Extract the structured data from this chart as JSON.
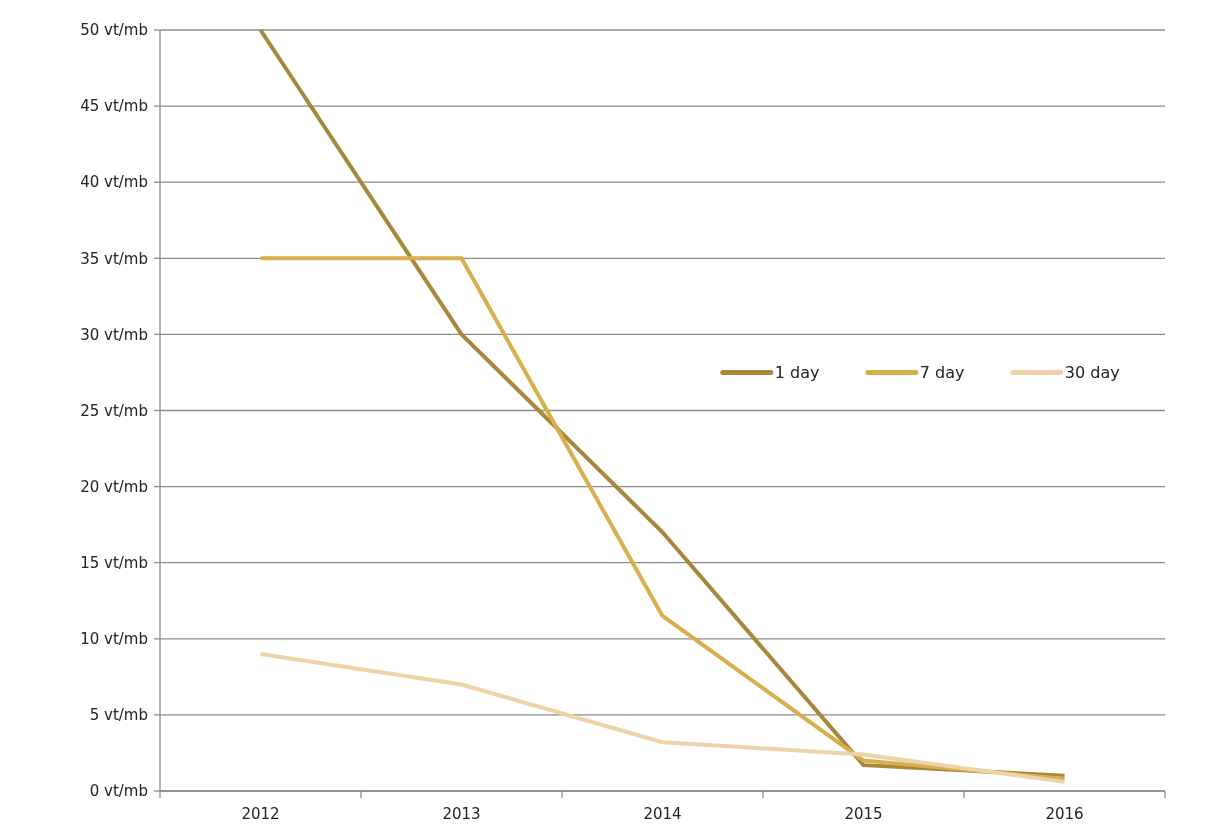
{
  "chart_data": {
    "type": "line",
    "categories": [
      "2012",
      "2013",
      "2014",
      "2015",
      "2016"
    ],
    "series": [
      {
        "name": "1 day",
        "color": "#a8873a",
        "values": [
          50,
          30,
          17,
          1.7,
          1.0
        ]
      },
      {
        "name": "7 day",
        "color": "#d9ae4c",
        "values": [
          35,
          35,
          11.5,
          2.0,
          0.8
        ]
      },
      {
        "name": "30 day",
        "color": "#ecd3a8",
        "values": [
          9,
          7,
          3.2,
          2.4,
          0.6
        ]
      }
    ],
    "ylim": [
      0,
      50
    ],
    "yticks": [
      {
        "value": 0,
        "label": "0 vt/mb"
      },
      {
        "value": 5,
        "label": "5 vt/mb"
      },
      {
        "value": 10,
        "label": "10 vt/mb"
      },
      {
        "value": 15,
        "label": "15 vt/mb"
      },
      {
        "value": 20,
        "label": "20 vt/mb"
      },
      {
        "value": 25,
        "label": "25 vt/mb"
      },
      {
        "value": 30,
        "label": "30 vt/mb"
      },
      {
        "value": 35,
        "label": "35 vt/mb"
      },
      {
        "value": 40,
        "label": "40 vt/mb"
      },
      {
        "value": 45,
        "label": "45 vt/mb"
      },
      {
        "value": 50,
        "label": "50 vt/mb"
      }
    ],
    "grid": "y",
    "legend": "right",
    "marker": "none",
    "line_style": "solid"
  }
}
